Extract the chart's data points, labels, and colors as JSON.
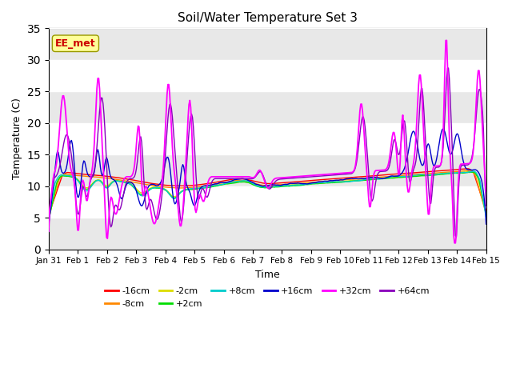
{
  "title": "Soil/Water Temperature Set 3",
  "xlabel": "Time",
  "ylabel": "Temperature (C)",
  "ylim": [
    0,
    35
  ],
  "yticks": [
    0,
    5,
    10,
    15,
    20,
    25,
    30,
    35
  ],
  "plot_bg": "#f0f0f0",
  "series_colors": {
    "-16cm": "#ff0000",
    "-8cm": "#ff8800",
    "-2cm": "#dddd00",
    "+2cm": "#00dd00",
    "+8cm": "#00cccc",
    "+16cm": "#0000cc",
    "+32cm": "#ff00ff",
    "+64cm": "#8800bb"
  },
  "watermark": "EE_met",
  "watermark_color": "#cc0000",
  "watermark_bg": "#ffff99"
}
